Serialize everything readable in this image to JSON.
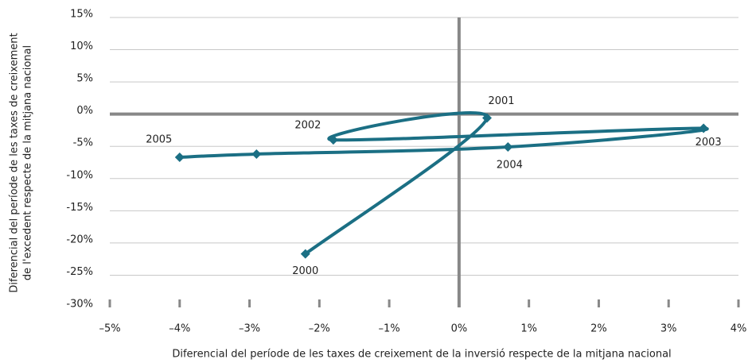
{
  "chart_data": {
    "type": "scatter",
    "xlabel": "Diferencial del període de les taxes de creixement de la inversió respecte de la mitjana nacional",
    "ylabel": [
      "Diferencial del període de les taxes de creixement",
      "de l'excedent respecte de la mitjana nacional"
    ],
    "x": [
      -2.2,
      0.4,
      -1.8,
      3.5,
      0.7,
      -2.9,
      -4.0
    ],
    "series": [
      {
        "color": "#1b6f84",
        "values": [
          -21.7,
          -0.6,
          -4.0,
          -2.2,
          -5.1,
          -6.2,
          -6.7
        ]
      }
    ],
    "point_labels": [
      "2000",
      "2001",
      "2002",
      "2003",
      "2004",
      null,
      "2005"
    ],
    "xlim": [
      -5,
      4
    ],
    "xticks": [
      {
        "value": -5,
        "label": "–5%"
      },
      {
        "value": -4,
        "label": "–4%"
      },
      {
        "value": -3,
        "label": "–3%"
      },
      {
        "value": -2,
        "label": "–2%"
      },
      {
        "value": -1,
        "label": "–1%"
      },
      {
        "value": 0,
        "label": "0%"
      },
      {
        "value": 1,
        "label": "1%"
      },
      {
        "value": 2,
        "label": "2%"
      },
      {
        "value": 3,
        "label": "3%"
      },
      {
        "value": 4,
        "label": "4%"
      }
    ],
    "ylim": [
      -30,
      15
    ],
    "yticks": [
      {
        "value": 15,
        "label": "15%"
      },
      {
        "value": 10,
        "label": "10%"
      },
      {
        "value": 5,
        "label": "5%"
      },
      {
        "value": 0,
        "label": "0%"
      },
      {
        "value": -5,
        "label": "-5%"
      },
      {
        "value": -10,
        "label": "-10%"
      },
      {
        "value": -15,
        "label": "-15%"
      },
      {
        "value": -20,
        "label": "-20%"
      },
      {
        "value": -25,
        "label": "-25%"
      },
      {
        "value": -30,
        "label": "-30%"
      }
    ],
    "grid": true
  }
}
